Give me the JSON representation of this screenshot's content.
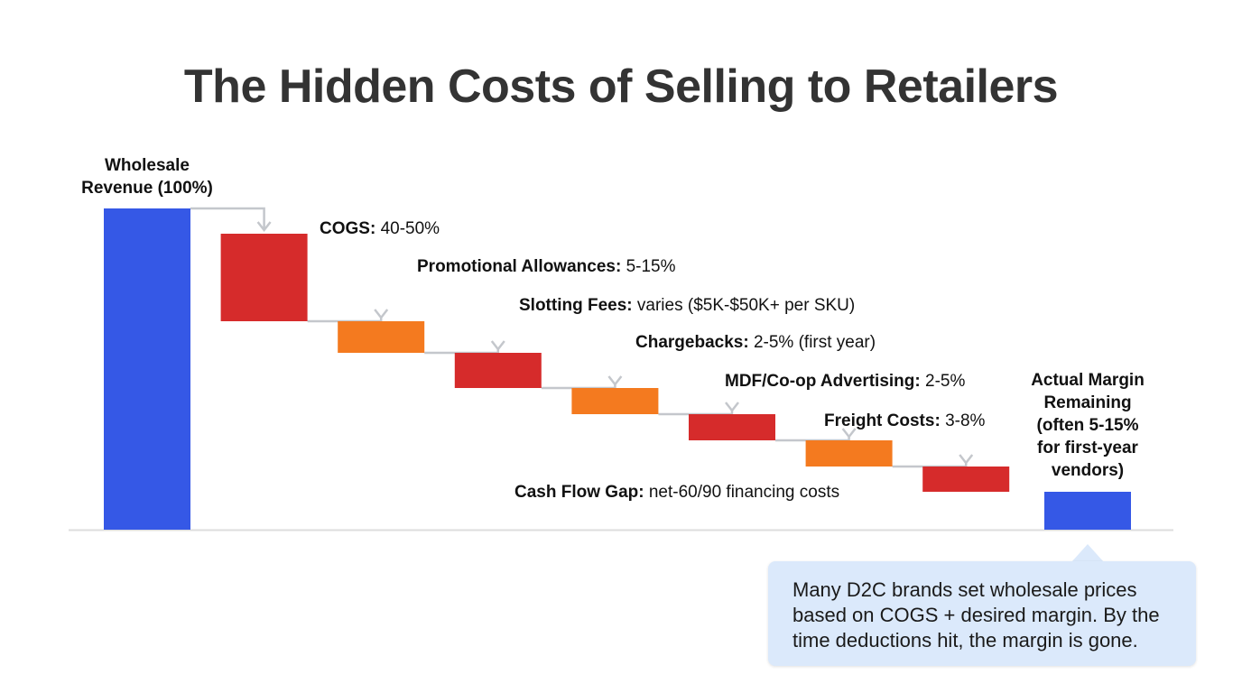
{
  "chart_data": {
    "type": "waterfall",
    "title": "The Hidden Costs of Selling to Retailers",
    "colors": {
      "total": "#3558e6",
      "cost_red": "#d62b2b",
      "cost_orange": "#f47a1f",
      "connector": "#c4c7cc",
      "baseline": "#dddddd"
    },
    "start": {
      "name": "Wholesale",
      "name2": "Revenue (100%)",
      "value": 100
    },
    "steps": [
      {
        "name": "COGS:",
        "value_text": "40-50%",
        "color": "red"
      },
      {
        "name": "Promotional Allowances:",
        "value_text": "5-15%",
        "color": "orange"
      },
      {
        "name": "Slotting Fees:",
        "value_text": "varies ($5K-$50K+ per SKU)",
        "color": "red"
      },
      {
        "name": "Chargebacks:",
        "value_text": "2-5% (first year)",
        "color": "orange"
      },
      {
        "name": "MDF/Co-op Advertising:",
        "value_text": "2-5%",
        "color": "red"
      },
      {
        "name": "Freight Costs:",
        "value_text": "3-8%",
        "color": "orange"
      },
      {
        "name": "Cash Flow Gap:",
        "value_text": "net-60/90 financing costs",
        "color": "red"
      }
    ],
    "end": {
      "lines": [
        "Actual Margin",
        "Remaining",
        "(often 5-15%",
        "for first-year",
        "vendors)"
      ]
    },
    "callout": "Many D2C brands set wholesale prices based on COGS + desired margin. By the time deductions hit, the margin is gone."
  }
}
